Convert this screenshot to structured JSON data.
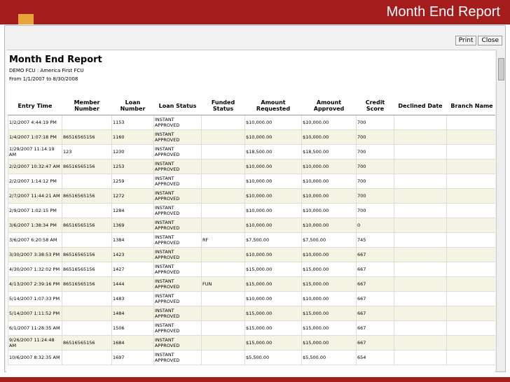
{
  "slide": {
    "title": "Month End Report"
  },
  "toolbar": {
    "buttons": [
      "Print",
      "Close"
    ]
  },
  "report": {
    "title": "Month End Report",
    "subtitle": "DEMO FCU : America First FCU",
    "date_range": "From 1/1/2007 to 8/30/2008"
  },
  "table": {
    "columns": [
      "Entry Time",
      "Member Number",
      "Loan Number",
      "Loan Status",
      "Funded Status",
      "Amount Requested",
      "Amount Approved",
      "Credit Score",
      "Declined Date",
      "Branch Name"
    ],
    "rows": [
      [
        "1/2/2007 4:44:19 PM",
        null,
        "1153",
        "INSTANT APPROVED",
        null,
        "$10,000.00",
        "$10,000.00",
        "700",
        null,
        null
      ],
      [
        "1/4/2007 1:07:18 PM",
        "86516565156",
        "1160",
        "INSTANT APPROVED",
        null,
        "$10,000.00",
        "$10,000.00",
        "700",
        null,
        null
      ],
      [
        "1/29/2007 11:14:19 AM",
        "123",
        "1230",
        "INSTANT APPROVED",
        null,
        "$18,500.00",
        "$18,500.00",
        "700",
        null,
        null
      ],
      [
        "2/2/2007 10:32:47 AM",
        "86516565156",
        "1253",
        "INSTANT APPROVED",
        null,
        "$10,000.00",
        "$10,000.00",
        "700",
        null,
        null
      ],
      [
        "2/2/2007 1:14:12 PM",
        null,
        "1259",
        "INSTANT APPROVED",
        null,
        "$10,000.00",
        "$10,000.00",
        "700",
        null,
        null
      ],
      [
        "2/7/2007 11:44:21 AM",
        "86516565156",
        "1272",
        "INSTANT APPROVED",
        null,
        "$10,000.00",
        "$10,000.00",
        "700",
        null,
        null
      ],
      [
        "2/9/2007 1:02:15 PM",
        null,
        "1284",
        "INSTANT APPROVED",
        null,
        "$10,000.00",
        "$10,000.00",
        "700",
        null,
        null
      ],
      [
        "3/6/2007 1:38:34 PM",
        "86516565156",
        "1369",
        "INSTANT APPROVED",
        null,
        "$10,000.00",
        "$10,000.00",
        "0",
        null,
        null
      ],
      [
        "3/6/2007 6:20:58 AM",
        null,
        "1384",
        "INSTANT APPROVED",
        "RF",
        "$7,500.00",
        "$7,500.00",
        "745",
        null,
        null
      ],
      [
        "3/30/2007 3:38:53 PM",
        "86516565156",
        "1423",
        "INSTANT APPROVED",
        null,
        "$10,000.00",
        "$10,000.00",
        "667",
        null,
        null
      ],
      [
        "4/30/2007 1:32:02 PM",
        "86516565156",
        "1427",
        "INSTANT APPROVED",
        null,
        "$15,000.00",
        "$15,000.00",
        "667",
        null,
        null
      ],
      [
        "4/13/2007 2:39:16 PM",
        "86516565156",
        "1444",
        "INSTANT APPROVED",
        "FUN",
        "$15,000.00",
        "$15,000.00",
        "667",
        null,
        null
      ],
      [
        "5/14/2007 1:07:33 PM",
        null,
        "1483",
        "INSTANT APPROVED",
        null,
        "$10,000.00",
        "$10,000.00",
        "667",
        null,
        null
      ],
      [
        "5/14/2007 1:11:52 PM",
        null,
        "1484",
        "INSTANT APPROVED",
        null,
        "$15,000.00",
        "$15,000.00",
        "667",
        null,
        null
      ],
      [
        "6/1/2007 11:28:35 AM",
        null,
        "1506",
        "INSTANT APPROVED",
        null,
        "$15,000.00",
        "$15,000.00",
        "667",
        null,
        null
      ],
      [
        "9/26/2007 11:24:48 AM",
        "86516565156",
        "1684",
        "INSTANT APPROVED",
        null,
        "$15,000.00",
        "$15,000.00",
        "667",
        null,
        null
      ],
      [
        "10/6/2007 8:32:35 AM",
        null,
        "1697",
        "INSTANT APPROVED",
        null,
        "$5,500.00",
        "$5,500.00",
        "654",
        null,
        null
      ]
    ]
  }
}
